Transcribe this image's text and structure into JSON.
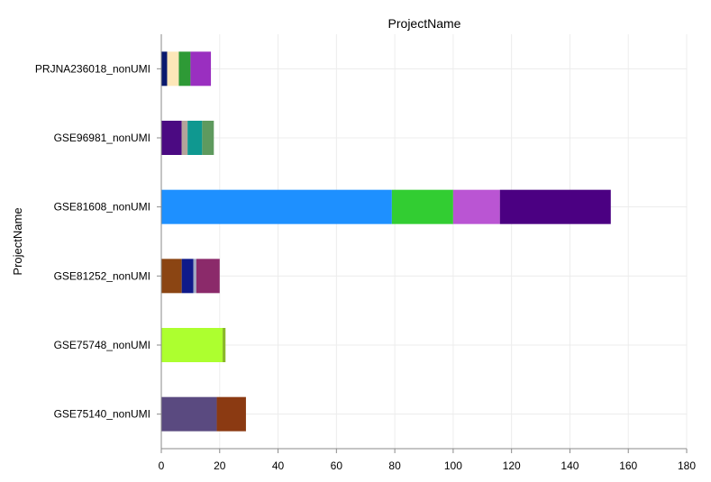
{
  "chart_data": {
    "type": "bar",
    "orientation": "horizontal",
    "stacked": true,
    "title": "ProjectName",
    "ylabel": "ProjectName",
    "xlabel": "",
    "xlim": [
      0,
      180
    ],
    "x_ticks": [
      0,
      20,
      40,
      60,
      80,
      100,
      120,
      140,
      160,
      180
    ],
    "grid": true,
    "legend": "none",
    "categories": [
      "PRJNA236018_nonUMI",
      "GSE96981_nonUMI",
      "GSE81608_nonUMI",
      "GSE81252_nonUMI",
      "GSE75748_nonUMI",
      "GSE75140_nonUMI"
    ],
    "segments": [
      [
        {
          "value": 2,
          "color": "#0a1a6e"
        },
        {
          "value": 4,
          "color": "#fde7b8"
        },
        {
          "value": 4,
          "color": "#2e9a36"
        },
        {
          "value": 7,
          "color": "#9a2fc0"
        }
      ],
      [
        {
          "value": 7,
          "color": "#4b0a82"
        },
        {
          "value": 2,
          "color": "#b3a49a"
        },
        {
          "value": 5,
          "color": "#0f9890"
        },
        {
          "value": 4,
          "color": "#5e9a5e"
        }
      ],
      [
        {
          "value": 79,
          "color": "#1e90ff"
        },
        {
          "value": 21,
          "color": "#32cd32"
        },
        {
          "value": 16,
          "color": "#ba55d3"
        },
        {
          "value": 38,
          "color": "#4b0082"
        }
      ],
      [
        {
          "value": 7,
          "color": "#8b4513"
        },
        {
          "value": 4,
          "color": "#0f1a8a"
        },
        {
          "value": 1,
          "color": "#a0a8c0"
        },
        {
          "value": 8,
          "color": "#8b2a6a"
        }
      ],
      [
        {
          "value": 21,
          "color": "#adff2f"
        },
        {
          "value": 1,
          "color": "#8ab82a"
        }
      ],
      [
        {
          "value": 19,
          "color": "#5a4a80"
        },
        {
          "value": 10,
          "color": "#8b3a12"
        }
      ]
    ]
  }
}
